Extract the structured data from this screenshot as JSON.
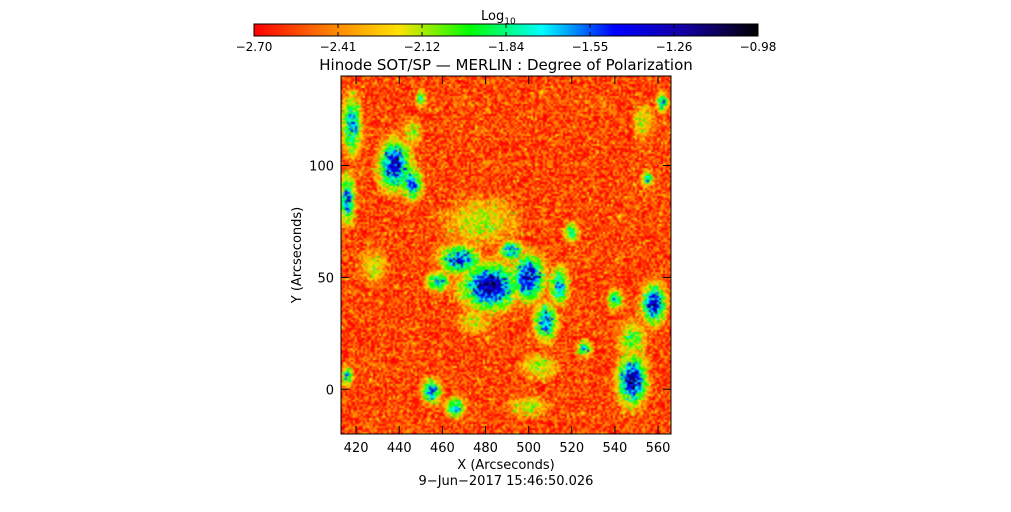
{
  "chart_data": {
    "type": "heatmap",
    "title": "Hinode SOT/SP — MERLIN : Degree of Polarization",
    "xlabel": "X (Arcseconds)",
    "ylabel": "Y (Arcseconds)",
    "xlim": [
      413,
      566
    ],
    "ylim": [
      -20,
      140
    ],
    "x_ticks": [
      420,
      440,
      460,
      480,
      500,
      520,
      540,
      560
    ],
    "y_ticks": [
      0,
      50,
      100
    ],
    "colorbar": {
      "label_base": "Log",
      "label_sub": "10",
      "min": -2.7,
      "max": -0.98,
      "tick_labels": [
        "−2.70",
        "−2.41",
        "−2.12",
        "−1.84",
        "−1.55",
        "−1.26",
        "−0.98"
      ],
      "colormap": [
        "#ff0000",
        "#ff7a00",
        "#ffe100",
        "#00ff00",
        "#00ffff",
        "#0000ff",
        "#1400a0",
        "#000000"
      ]
    },
    "timestamp": "9−Jun−2017 15:46:50.026",
    "map_description": "log10 degree of polarization; mostly red/orange/yellow background with blue/green patches of strong polarization",
    "strong_regions": [
      {
        "x": 418,
        "y": 118,
        "rx": 5,
        "ry": 14,
        "level": 0.62
      },
      {
        "x": 438,
        "y": 100,
        "rx": 8,
        "ry": 12,
        "level": 0.78
      },
      {
        "x": 446,
        "y": 92,
        "rx": 5,
        "ry": 8,
        "level": 0.66
      },
      {
        "x": 416,
        "y": 85,
        "rx": 4,
        "ry": 12,
        "level": 0.66
      },
      {
        "x": 468,
        "y": 58,
        "rx": 10,
        "ry": 7,
        "level": 0.7
      },
      {
        "x": 482,
        "y": 46,
        "rx": 14,
        "ry": 11,
        "level": 0.84
      },
      {
        "x": 500,
        "y": 50,
        "rx": 8,
        "ry": 11,
        "level": 0.8
      },
      {
        "x": 508,
        "y": 30,
        "rx": 6,
        "ry": 9,
        "level": 0.66
      },
      {
        "x": 514,
        "y": 46,
        "rx": 5,
        "ry": 9,
        "level": 0.62
      },
      {
        "x": 458,
        "y": 48,
        "rx": 6,
        "ry": 5,
        "level": 0.6
      },
      {
        "x": 492,
        "y": 62,
        "rx": 6,
        "ry": 5,
        "level": 0.62
      },
      {
        "x": 455,
        "y": -1,
        "rx": 5,
        "ry": 6,
        "level": 0.64
      },
      {
        "x": 466,
        "y": -8,
        "rx": 5,
        "ry": 5,
        "level": 0.6
      },
      {
        "x": 548,
        "y": 4,
        "rx": 7,
        "ry": 12,
        "level": 0.84
      },
      {
        "x": 558,
        "y": 38,
        "rx": 6,
        "ry": 10,
        "level": 0.76
      },
      {
        "x": 540,
        "y": 40,
        "rx": 4,
        "ry": 5,
        "level": 0.56
      },
      {
        "x": 526,
        "y": 18,
        "rx": 4,
        "ry": 4,
        "level": 0.56
      },
      {
        "x": 562,
        "y": 128,
        "rx": 3,
        "ry": 5,
        "level": 0.58
      },
      {
        "x": 555,
        "y": 94,
        "rx": 3,
        "ry": 4,
        "level": 0.54
      },
      {
        "x": 416,
        "y": 6,
        "rx": 3,
        "ry": 5,
        "level": 0.56
      },
      {
        "x": 450,
        "y": 130,
        "rx": 3,
        "ry": 4,
        "level": 0.5
      },
      {
        "x": 520,
        "y": 70,
        "rx": 4,
        "ry": 5,
        "level": 0.52
      }
    ],
    "moderate_regions": [
      {
        "x": 478,
        "y": 75,
        "rx": 20,
        "ry": 12,
        "level": 0.34
      },
      {
        "x": 505,
        "y": 10,
        "rx": 10,
        "ry": 7,
        "level": 0.34
      },
      {
        "x": 500,
        "y": -8,
        "rx": 12,
        "ry": 6,
        "level": 0.3
      },
      {
        "x": 428,
        "y": 55,
        "rx": 8,
        "ry": 10,
        "level": 0.3
      },
      {
        "x": 548,
        "y": 22,
        "rx": 8,
        "ry": 10,
        "level": 0.4
      },
      {
        "x": 446,
        "y": 115,
        "rx": 6,
        "ry": 8,
        "level": 0.3
      },
      {
        "x": 553,
        "y": 120,
        "rx": 6,
        "ry": 10,
        "level": 0.3
      },
      {
        "x": 475,
        "y": 30,
        "rx": 9,
        "ry": 7,
        "level": 0.32
      }
    ]
  }
}
